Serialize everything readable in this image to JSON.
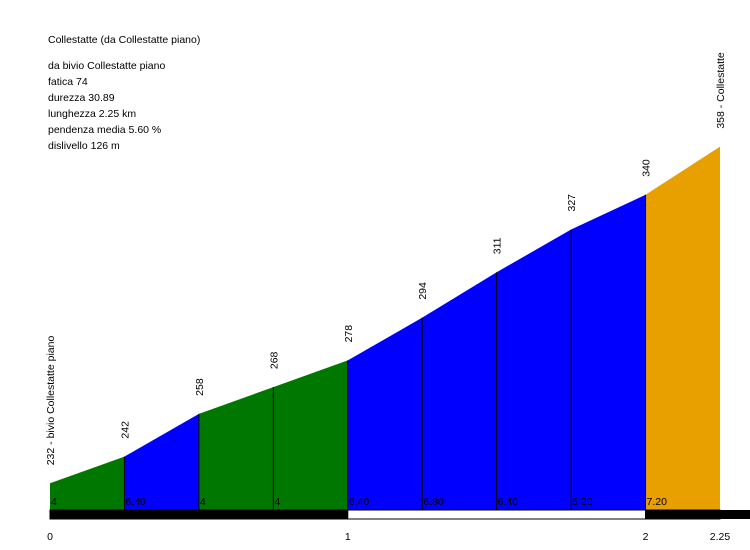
{
  "info": {
    "title": "Collestatte (da Collestatte piano)",
    "lines": [
      "da bivio Collestatte piano",
      "fatica 74",
      "durezza 30.89",
      "lunghezza 2.25 km",
      "pendenza media 5.60 %",
      "dislivello 126 m"
    ]
  },
  "chart_data": {
    "type": "area",
    "title": "Collestatte (da Collestatte piano)",
    "xlabel": "",
    "ylabel": "",
    "xlim": [
      0,
      2.25
    ],
    "ylim": [
      222,
      362
    ],
    "x_ticks": [
      "0",
      "1",
      "2",
      "2.25"
    ],
    "x_tick_values": [
      0,
      1,
      2,
      2.25
    ],
    "grid": false,
    "legend": "none",
    "points": [
      {
        "x": 0,
        "y": 232,
        "label": "232 - bivio Collestatte piano"
      },
      {
        "x": 0.25,
        "y": 242,
        "label": "242"
      },
      {
        "x": 0.5,
        "y": 258,
        "label": "258"
      },
      {
        "x": 0.75,
        "y": 268,
        "label": "268"
      },
      {
        "x": 1.0,
        "y": 278,
        "label": "278"
      },
      {
        "x": 1.25,
        "y": 294,
        "label": "294"
      },
      {
        "x": 1.5,
        "y": 311,
        "label": "311"
      },
      {
        "x": 1.75,
        "y": 327,
        "label": "327"
      },
      {
        "x": 2.0,
        "y": 340,
        "label": "340"
      },
      {
        "x": 2.25,
        "y": 358,
        "label": "358 - Collestatte"
      }
    ],
    "segments": [
      {
        "from": 0,
        "to": 0.25,
        "gradient": "4",
        "color": "#007800"
      },
      {
        "from": 0.25,
        "to": 0.5,
        "gradient": "6.40",
        "color": "#0000ff"
      },
      {
        "from": 0.5,
        "to": 0.75,
        "gradient": "4",
        "color": "#007800"
      },
      {
        "from": 0.75,
        "to": 1.0,
        "gradient": "4",
        "color": "#007800"
      },
      {
        "from": 1.0,
        "to": 1.25,
        "gradient": "6.40",
        "color": "#0000ff"
      },
      {
        "from": 1.25,
        "to": 1.5,
        "gradient": "6.80",
        "color": "#0000ff"
      },
      {
        "from": 1.5,
        "to": 1.75,
        "gradient": "6.40",
        "color": "#0000ff"
      },
      {
        "from": 1.75,
        "to": 2.0,
        "gradient": "5.20",
        "color": "#0000ff"
      },
      {
        "from": 2.0,
        "to": 2.25,
        "gradient": "7.20",
        "color": "#e8a000"
      }
    ]
  }
}
